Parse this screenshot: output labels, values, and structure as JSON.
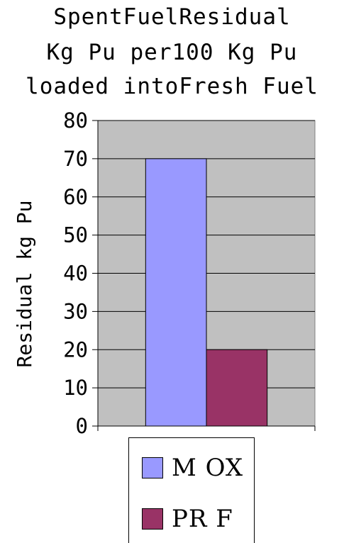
{
  "title_lines": [
    "SpentFuelResidual",
    "Kg Pu per100 Kg Pu",
    "loaded intoFresh Fuel"
  ],
  "chart_data": {
    "type": "bar",
    "title": "SpentFuelResidual Kg Pu per100 Kg Pu loaded intoFresh Fuel",
    "xlabel": "",
    "ylabel": "Residual kg Pu",
    "ylim": [
      0,
      80
    ],
    "yticks": [
      0,
      10,
      20,
      30,
      40,
      50,
      60,
      70,
      80
    ],
    "grid": true,
    "legend_position": "bottom",
    "series": [
      {
        "name": "M OX",
        "values": [
          70
        ],
        "color": "#9999ff"
      },
      {
        "name": "PR F",
        "values": [
          20
        ],
        "color": "#993366"
      }
    ],
    "plot_background": "#c0c0c0"
  }
}
